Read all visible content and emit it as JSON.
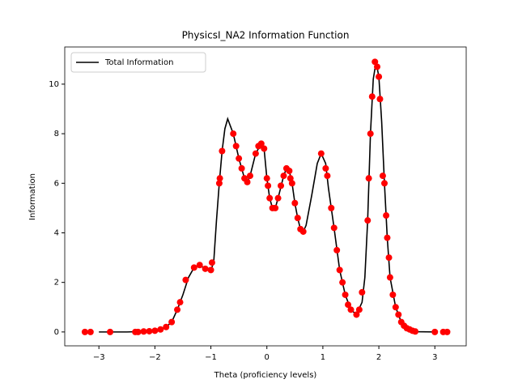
{
  "chart_data": {
    "type": "line",
    "title": "PhysicsI_NA2 Information Function",
    "x_label": "Theta (proficiency levels)",
    "y_label": "Information",
    "legend": "upper left",
    "series": [
      {
        "name": "Total Information",
        "color": "#000000",
        "x": [
          -3,
          -2.5,
          -2.2,
          -2,
          -1.8,
          -1.7,
          -1.6,
          -1.5,
          -1.4,
          -1.3,
          -1.2,
          -1.1,
          -1,
          -0.95,
          -0.9,
          -0.85,
          -0.8,
          -0.75,
          -0.7,
          -0.6,
          -0.5,
          -0.4,
          -0.35,
          -0.3,
          -0.2,
          -0.1,
          -0.05,
          0,
          0.05,
          0.1,
          0.15,
          0.2,
          0.3,
          0.35,
          0.4,
          0.45,
          0.5,
          0.55,
          0.6,
          0.65,
          0.7,
          0.8,
          0.9,
          0.97,
          1.05,
          1.1,
          1.2,
          1.3,
          1.4,
          1.5,
          1.6,
          1.7,
          1.75,
          1.8,
          1.85,
          1.9,
          1.95,
          2,
          2.05,
          2.1,
          2.15,
          2.2,
          2.3,
          2.4,
          2.5,
          2.6,
          2.7,
          3
        ],
        "values": [
          0,
          0,
          0.02,
          0.05,
          0.2,
          0.4,
          0.9,
          1.5,
          2.2,
          2.6,
          2.7,
          2.55,
          2.5,
          2.8,
          4.5,
          6,
          7.3,
          8.2,
          8.6,
          8,
          7,
          6.2,
          6.05,
          6.3,
          7.2,
          7.6,
          7.4,
          6.2,
          5.4,
          5,
          5,
          5.4,
          6.3,
          6.6,
          6.5,
          6,
          5.2,
          4.6,
          4.15,
          4.05,
          4.3,
          5.5,
          6.8,
          7.2,
          6.8,
          5.8,
          4.2,
          2.5,
          1.5,
          0.9,
          0.7,
          1.2,
          2.2,
          4.5,
          8,
          10.2,
          10.9,
          10.3,
          8.5,
          6,
          3.8,
          2.2,
          1,
          0.4,
          0.15,
          0.05,
          0.01,
          0
        ]
      }
    ],
    "points": {
      "color": "#ff0000",
      "x": [
        -3.25,
        -3.15,
        -2.8,
        -2.35,
        -2.3,
        -2.2,
        -2.1,
        -2,
        -1.9,
        -1.8,
        -1.7,
        -1.6,
        -1.55,
        -1.45,
        -1.3,
        -1.2,
        -1.1,
        -1,
        -0.98,
        -0.85,
        -0.84,
        -0.8,
        -0.6,
        -0.55,
        -0.5,
        -0.45,
        -0.4,
        -0.35,
        -0.3,
        -0.2,
        -0.15,
        -0.1,
        -0.05,
        0,
        0.02,
        0.05,
        0.1,
        0.15,
        0.2,
        0.25,
        0.3,
        0.35,
        0.4,
        0.42,
        0.45,
        0.5,
        0.55,
        0.6,
        0.65,
        0.97,
        1.05,
        1.08,
        1.15,
        1.2,
        1.25,
        1.3,
        1.35,
        1.4,
        1.45,
        1.5,
        1.6,
        1.65,
        1.7,
        1.8,
        1.82,
        1.85,
        1.88,
        1.93,
        1.97,
        2,
        2.02,
        2.07,
        2.1,
        2.13,
        2.15,
        2.18,
        2.2,
        2.25,
        2.3,
        2.35,
        2.4,
        2.45,
        2.5,
        2.55,
        2.6,
        2.65,
        3,
        3.15,
        3.22
      ],
      "values": [
        0,
        0,
        0,
        0,
        0,
        0.02,
        0.03,
        0.05,
        0.1,
        0.2,
        0.4,
        0.9,
        1.2,
        2.1,
        2.6,
        2.7,
        2.55,
        2.5,
        2.8,
        6,
        6.2,
        7.3,
        8,
        7.5,
        7,
        6.6,
        6.2,
        6.05,
        6.3,
        7.2,
        7.5,
        7.6,
        7.4,
        6.2,
        5.9,
        5.4,
        5,
        5,
        5.4,
        5.9,
        6.3,
        6.6,
        6.5,
        6.2,
        6,
        5.2,
        4.6,
        4.15,
        4.05,
        7.2,
        6.6,
        6.3,
        5,
        4.2,
        3.3,
        2.5,
        2,
        1.5,
        1.1,
        0.9,
        0.7,
        0.9,
        1.6,
        4.5,
        6.2,
        8,
        9.5,
        10.9,
        10.7,
        10.3,
        9.4,
        6.3,
        6,
        4.7,
        3.8,
        3,
        2.2,
        1.5,
        1,
        0.7,
        0.4,
        0.25,
        0.15,
        0.1,
        0.05,
        0.02,
        0,
        0,
        0
      ]
    },
    "xlim": [
      -3.61,
      3.56
    ],
    "ylim": [
      -0.56,
      11.5
    ],
    "xticks": [
      {
        "value": -3,
        "label": "−3"
      },
      {
        "value": -2,
        "label": "−2"
      },
      {
        "value": -1,
        "label": "−1"
      },
      0,
      1,
      2,
      3
    ],
    "yticks": [
      0,
      2,
      4,
      6,
      8,
      10
    ]
  }
}
